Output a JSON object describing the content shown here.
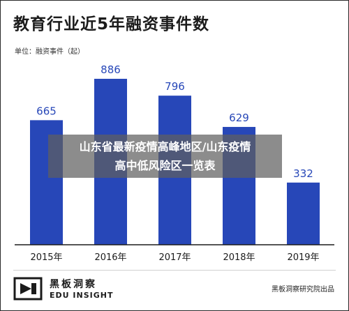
{
  "header": {
    "title": "教育行业近5年融资事件数",
    "unit": "单位：融资事件（起）"
  },
  "overlay": {
    "line1": "山东省最新疫情高峰地区/山东疫情",
    "line2": "高中低风险区一览表"
  },
  "footer": {
    "logo_cn": "黑板洞察",
    "logo_en": "EDU INSIGHT",
    "source": "黑板洞察研究院出品"
  },
  "colors": {
    "bar": "#2747b8",
    "text": "#1b1b1b"
  },
  "chart_data": {
    "type": "bar",
    "title": "教育行业近5年融资事件数",
    "xlabel": "",
    "ylabel": "",
    "categories": [
      "2015年",
      "2016年",
      "2017年",
      "2018年",
      "2019年"
    ],
    "values": [
      665,
      886,
      796,
      629,
      332
    ],
    "ylim": [
      0,
      886
    ],
    "grid": false,
    "legend": "none"
  }
}
